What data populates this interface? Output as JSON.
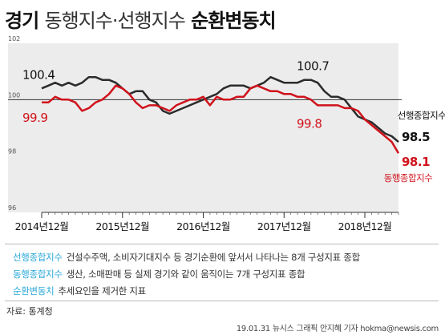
{
  "header": {
    "title_bold": "경기",
    "title_mid": "동행지수·선행지수",
    "title_end": "순환변동치"
  },
  "legend": [
    {
      "key": "선행종합지수",
      "desc": "건설수주액, 소비자기대지수 등 경기순환에 앞서서 나타나는 8개 구성지표 종합"
    },
    {
      "key": "동행종합지수",
      "desc": "생산, 소매판매 등 실제 경기와 같이 움직이는 7개 구성지표 종합"
    },
    {
      "key": "순환변동치",
      "desc": "추세요인을 제거한 지표"
    }
  ],
  "footer": {
    "source": "자료: 통계청",
    "credit": "19.01.31 뉴시스 그래픽 안지혜 기자 hokma@newsis.com"
  },
  "colors": {
    "leading": "#2b2b2b",
    "coincident": "#d0121b",
    "accent": "#2aa8d8"
  },
  "chart_data": {
    "type": "line",
    "title": "경기 동행지수·선행지수 순환변동치",
    "x_ticks": [
      "2014년12월",
      "2015년12월",
      "2016년12월",
      "2017년12월",
      "2018년12월"
    ],
    "ylim": [
      96,
      102
    ],
    "y_ticks": [
      "102",
      "100",
      "98",
      "96"
    ],
    "reference_line": 100,
    "series": [
      {
        "name": "선행종합지수",
        "color": "#2b2b2b",
        "values": [
          100.4,
          100.5,
          100.6,
          100.5,
          100.6,
          100.5,
          100.6,
          100.8,
          100.8,
          100.7,
          100.7,
          100.6,
          100.4,
          100.2,
          100.3,
          100.3,
          100.0,
          99.9,
          99.6,
          99.5,
          99.6,
          99.7,
          99.8,
          99.9,
          100.0,
          100.1,
          100.2,
          100.4,
          100.5,
          100.5,
          100.5,
          100.4,
          100.5,
          100.6,
          100.8,
          100.7,
          100.6,
          100.6,
          100.6,
          100.7,
          100.7,
          100.6,
          100.3,
          100.1,
          100.1,
          100.0,
          99.7,
          99.4,
          99.3,
          99.2,
          99.0,
          98.8,
          98.7,
          98.5
        ],
        "first_label": "100.4",
        "peak_label": "100.7",
        "last_label": "98.5"
      },
      {
        "name": "동행종합지수",
        "color": "#d0121b",
        "values": [
          99.9,
          99.9,
          100.1,
          100.0,
          100.0,
          99.9,
          99.6,
          99.7,
          99.9,
          100.0,
          100.2,
          100.5,
          100.4,
          100.2,
          99.9,
          99.7,
          99.8,
          99.8,
          99.7,
          99.6,
          99.8,
          99.9,
          100.0,
          100.0,
          100.1,
          99.8,
          100.1,
          100.0,
          100.0,
          100.1,
          100.1,
          100.4,
          100.5,
          100.4,
          100.3,
          100.3,
          100.2,
          100.2,
          100.1,
          100.1,
          100.0,
          99.8,
          99.8,
          99.8,
          99.8,
          99.7,
          99.7,
          99.6,
          99.3,
          99.1,
          98.9,
          98.7,
          98.5,
          98.1
        ],
        "first_label": "99.9",
        "mid_label": "99.8",
        "last_label": "98.1"
      }
    ],
    "series_label_leading": "선행종합지수",
    "series_label_coincident": "동행종합지수"
  }
}
